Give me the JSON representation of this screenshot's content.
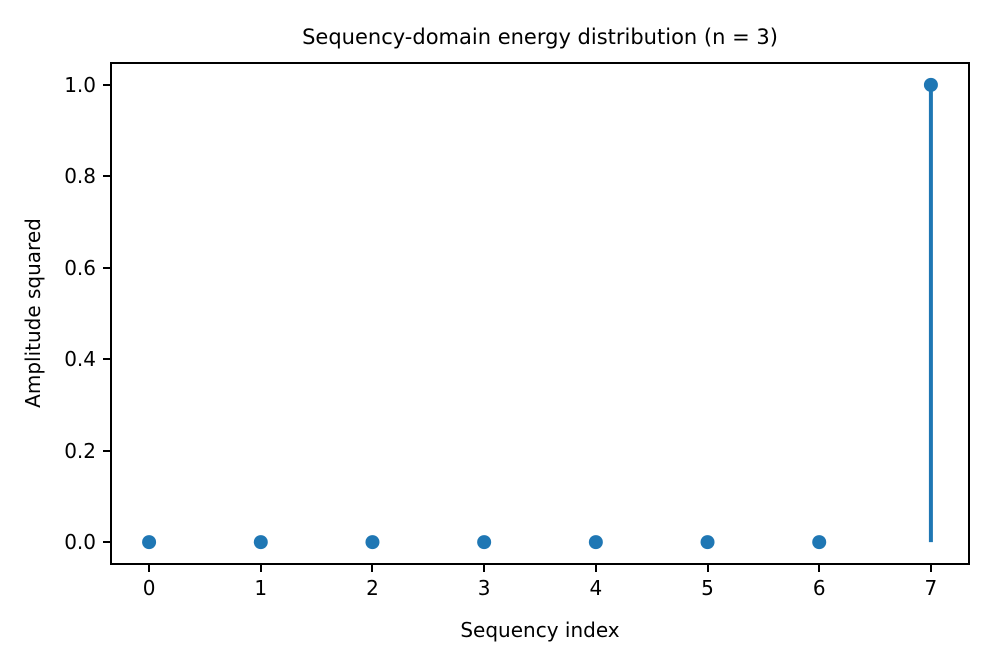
{
  "chart_data": {
    "type": "stem",
    "title": "Sequency-domain energy distribution (n = 3)",
    "xlabel": "Sequency index",
    "ylabel": "Amplitude squared",
    "x": [
      0,
      1,
      2,
      3,
      4,
      5,
      6,
      7
    ],
    "values": [
      0.0,
      0.0,
      0.0,
      0.0,
      0.0,
      0.0,
      0.0,
      1.0
    ],
    "xlim": [
      -0.35,
      7.35
    ],
    "ylim": [
      -0.05,
      1.05
    ],
    "x_tick_positions": [
      0,
      1,
      2,
      3,
      4,
      5,
      6,
      7
    ],
    "x_tick_labels": [
      "0",
      "1",
      "2",
      "3",
      "4",
      "5",
      "6",
      "7"
    ],
    "y_tick_positions": [
      0.0,
      0.2,
      0.4,
      0.6,
      0.8,
      1.0
    ],
    "y_tick_labels": [
      "0.0",
      "0.2",
      "0.4",
      "0.6",
      "0.8",
      "1.0"
    ],
    "grid": false,
    "legend": "none",
    "colors": {
      "stem": "#1f77b4",
      "marker": "#1f77b4",
      "axes_edge": "#000000",
      "text": "#000000",
      "background": "#ffffff"
    }
  }
}
